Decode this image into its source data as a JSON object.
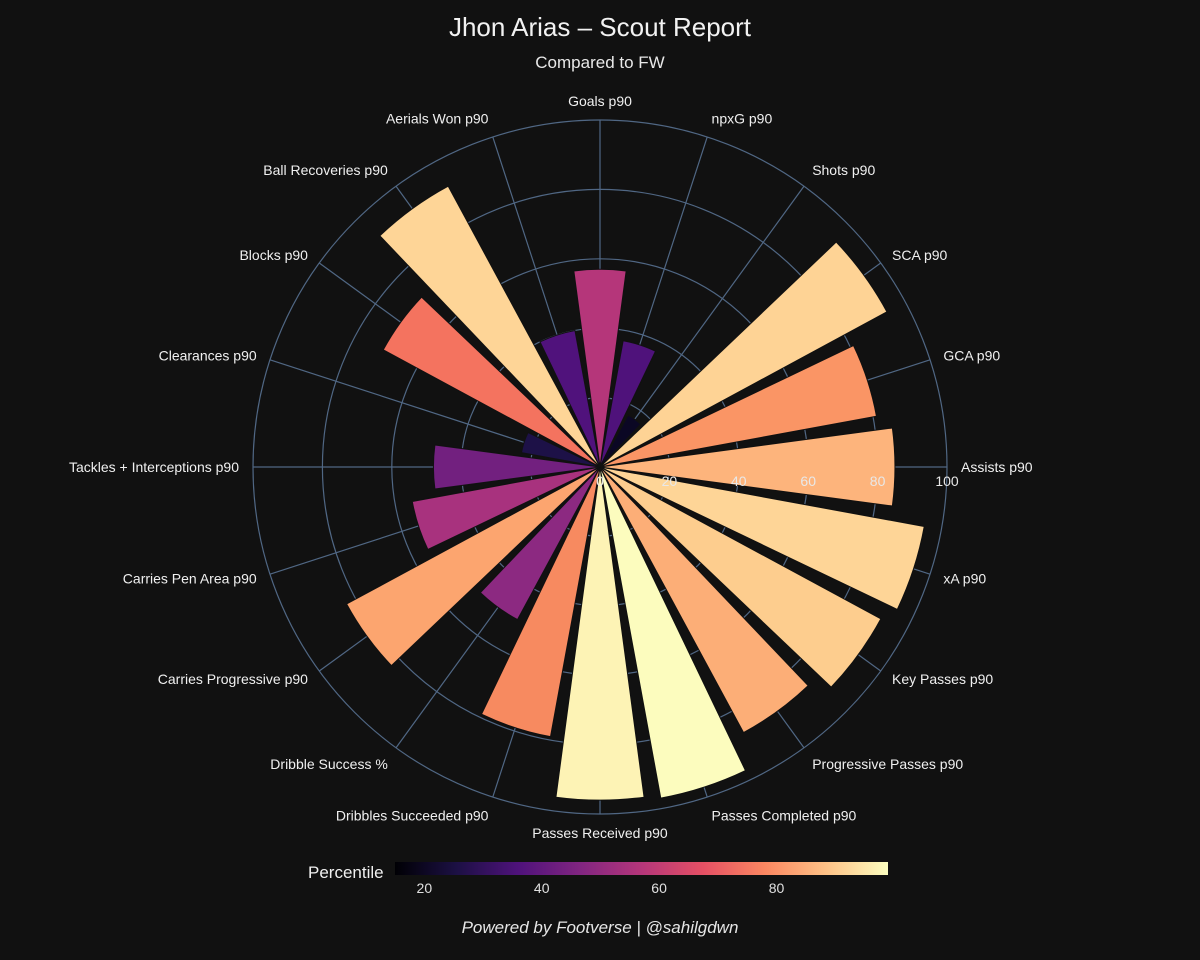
{
  "title": "Jhon Arias – Scout Report",
  "subtitle": "Compared to FW",
  "footer": "Powered by Footverse | @sahilgdwn",
  "colorbar": {
    "label": "Percentile",
    "ticks": [
      "20",
      "40",
      "60",
      "80"
    ],
    "tick_values": [
      20,
      40,
      60,
      80
    ],
    "range": [
      15,
      99
    ],
    "colors": [
      "#000004",
      "#1c1044",
      "#4f127b",
      "#812581",
      "#b5367a",
      "#e55064",
      "#fb8761",
      "#fec287",
      "#fcfdbf"
    ]
  },
  "chart_data": {
    "type": "polar-bar",
    "title": "Jhon Arias – Scout Report",
    "subtitle": "Compared to FW",
    "radial_range": [
      0,
      100
    ],
    "radial_ticks": [
      0,
      20,
      40,
      60,
      80,
      100
    ],
    "categories": [
      "Goals p90",
      "npxG p90",
      "Shots p90",
      "SCA p90",
      "GCA p90",
      "Assists p90",
      "xA p90",
      "Key Passes p90",
      "Progressive Passes p90",
      "Passes Completed p90",
      "Passes Received p90",
      "Dribbles Succeeded p90",
      "Dribble Success %",
      "Carries Progressive p90",
      "Carries Pen Area p90",
      "Tackles + Interceptions p90",
      "Clearances p90",
      "Blocks p90",
      "Ball Recoveries p90",
      "Aerials Won p90"
    ],
    "values": [
      57,
      37,
      17,
      94,
      81,
      85,
      95,
      92,
      87,
      97,
      96,
      79,
      50,
      83,
      55,
      48,
      23,
      71,
      92,
      40
    ],
    "colors": [
      "#b5367a",
      "#4f127b",
      "#0b0724",
      "#fed395",
      "#fa9565",
      "#fdb47c",
      "#fed597",
      "#fdcd8e",
      "#fcae77",
      "#fcfcbe",
      "#fdf3b5",
      "#f78a60",
      "#8c2981",
      "#fca56f",
      "#a8327e",
      "#72207f",
      "#1d1147",
      "#f4735f",
      "#fed597",
      "#50127c"
    ]
  }
}
